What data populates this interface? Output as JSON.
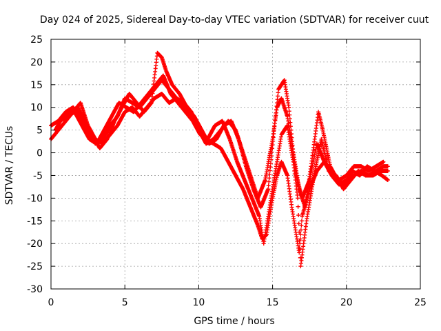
{
  "chart_data": {
    "type": "scatter",
    "title": "Day 024 of 2025, Sidereal Day-to-day VTEC variation (SDTVAR) for receiver cuut",
    "xlabel": "GPS time / hours",
    "ylabel": "SDTVAR / TECUs",
    "xlim": [
      0,
      25
    ],
    "ylim": [
      -30,
      25
    ],
    "xticks": [
      0,
      5,
      10,
      15,
      20,
      25
    ],
    "yticks": [
      -30,
      -25,
      -20,
      -15,
      -10,
      -5,
      0,
      5,
      10,
      15,
      20,
      25
    ],
    "grid": true,
    "marker": "+",
    "series": [
      {
        "name": "SDTVAR",
        "color": "#ff0000",
        "tracks": [
          [
            [
              0,
              3
            ],
            [
              0.5,
              5
            ],
            [
              1,
              7
            ],
            [
              1.5,
              9
            ],
            [
              2,
              11
            ],
            [
              2.5,
              6
            ],
            [
              3,
              3
            ],
            [
              3.5,
              2
            ],
            [
              4,
              4
            ],
            [
              4.5,
              6
            ],
            [
              5,
              9
            ],
            [
              5.5,
              10
            ],
            [
              6,
              8
            ],
            [
              6.5,
              10
            ],
            [
              7,
              12
            ],
            [
              7.5,
              13
            ],
            [
              8,
              11
            ],
            [
              8.5,
              12
            ],
            [
              9,
              10
            ],
            [
              9.5,
              8
            ],
            [
              10,
              6
            ],
            [
              10.5,
              3
            ],
            [
              11,
              2
            ],
            [
              11.5,
              1
            ],
            [
              12,
              -2
            ],
            [
              12.5,
              -5
            ],
            [
              13,
              -8
            ],
            [
              13.5,
              -12
            ],
            [
              14,
              -16
            ],
            [
              14.3,
              -19
            ],
            [
              14.6,
              -18
            ],
            [
              15,
              -10
            ],
            [
              15.3,
              -5
            ],
            [
              15.6,
              -2
            ],
            [
              16,
              -5
            ],
            [
              16.3,
              -12
            ],
            [
              16.6,
              -18
            ],
            [
              16.8,
              -22
            ],
            [
              17,
              -14
            ],
            [
              17.5,
              -8
            ],
            [
              18,
              -4
            ],
            [
              18.5,
              -2
            ],
            [
              19,
              -5
            ],
            [
              19.5,
              -7
            ],
            [
              20,
              -6
            ],
            [
              20.5,
              -5
            ],
            [
              21,
              -4
            ],
            [
              21.5,
              -5
            ],
            [
              22,
              -4
            ],
            [
              22.5,
              -3
            ],
            [
              22.8,
              -3
            ]
          ],
          [
            [
              0,
              6
            ],
            [
              0.5,
              7
            ],
            [
              1,
              9
            ],
            [
              1.5,
              10
            ],
            [
              2,
              8
            ],
            [
              2.5,
              5
            ],
            [
              3,
              2
            ],
            [
              3.5,
              3
            ],
            [
              4,
              6
            ],
            [
              4.5,
              8
            ],
            [
              5,
              12
            ],
            [
              5.5,
              11
            ],
            [
              6,
              10
            ],
            [
              6.5,
              12
            ],
            [
              7,
              14
            ],
            [
              7.5,
              16
            ],
            [
              8,
              14
            ],
            [
              8.5,
              12
            ],
            [
              9,
              11
            ],
            [
              9.5,
              9
            ],
            [
              10,
              5
            ],
            [
              10.5,
              2
            ],
            [
              11,
              3
            ],
            [
              11.5,
              5
            ],
            [
              12,
              7
            ],
            [
              12.5,
              5
            ],
            [
              13,
              0
            ],
            [
              13.5,
              -5
            ],
            [
              14,
              -10
            ],
            [
              14.5,
              -6
            ],
            [
              15,
              3
            ],
            [
              15.3,
              10
            ],
            [
              15.6,
              12
            ],
            [
              16,
              8
            ],
            [
              16.3,
              2
            ],
            [
              16.6,
              -5
            ],
            [
              17,
              -10
            ],
            [
              17.5,
              -6
            ],
            [
              18,
              2
            ],
            [
              18.5,
              -2
            ],
            [
              19,
              -4
            ],
            [
              19.5,
              -6
            ],
            [
              20,
              -5
            ],
            [
              20.5,
              -3
            ],
            [
              21,
              -3
            ],
            [
              21.5,
              -4
            ],
            [
              22,
              -3
            ],
            [
              22.5,
              -2
            ]
          ],
          [
            [
              0.3,
              5
            ],
            [
              0.8,
              8
            ],
            [
              1.3,
              9
            ],
            [
              1.8,
              10
            ],
            [
              2.3,
              7
            ],
            [
              2.8,
              4
            ],
            [
              3.3,
              1
            ],
            [
              3.8,
              3
            ],
            [
              4.3,
              7
            ],
            [
              4.8,
              10
            ],
            [
              5.3,
              13
            ],
            [
              5.8,
              11
            ],
            [
              6.3,
              9
            ],
            [
              6.8,
              11
            ],
            [
              7.2,
              22
            ],
            [
              7.5,
              21
            ],
            [
              7.8,
              18
            ],
            [
              8.2,
              15
            ],
            [
              8.7,
              13
            ],
            [
              9.2,
              10
            ],
            [
              9.7,
              8
            ],
            [
              10.2,
              5
            ],
            [
              10.7,
              2
            ],
            [
              11.2,
              3
            ],
            [
              11.7,
              6
            ],
            [
              12.2,
              7
            ],
            [
              12.7,
              3
            ],
            [
              13.2,
              -3
            ],
            [
              13.7,
              -8
            ],
            [
              14.2,
              -12
            ],
            [
              14.7,
              -8
            ],
            [
              15.1,
              5
            ],
            [
              15.4,
              14
            ],
            [
              15.8,
              16
            ],
            [
              16.1,
              10
            ],
            [
              16.4,
              0
            ],
            [
              16.8,
              -8
            ],
            [
              17.2,
              -12
            ],
            [
              17.6,
              -3
            ],
            [
              18.1,
              9
            ],
            [
              18.4,
              5
            ],
            [
              18.9,
              -3
            ],
            [
              19.4,
              -6
            ],
            [
              19.9,
              -7
            ],
            [
              20.4,
              -4
            ],
            [
              20.9,
              -5
            ],
            [
              21.4,
              -3
            ],
            [
              21.9,
              -4
            ],
            [
              22.4,
              -5
            ],
            [
              22.8,
              -6
            ]
          ],
          [
            [
              0.6,
              7
            ],
            [
              1.1,
              8
            ],
            [
              1.6,
              9
            ],
            [
              2.1,
              6
            ],
            [
              2.6,
              3
            ],
            [
              3.1,
              2
            ],
            [
              3.6,
              5
            ],
            [
              4.1,
              8
            ],
            [
              4.6,
              11
            ],
            [
              5.1,
              10
            ],
            [
              5.6,
              9
            ],
            [
              6.1,
              11
            ],
            [
              6.6,
              13
            ],
            [
              7.1,
              15
            ],
            [
              7.6,
              17
            ],
            [
              8.1,
              13
            ],
            [
              8.6,
              11
            ],
            [
              9.1,
              9
            ],
            [
              9.6,
              7
            ],
            [
              10.1,
              4
            ],
            [
              10.6,
              3
            ],
            [
              11.1,
              6
            ],
            [
              11.6,
              7
            ],
            [
              12.1,
              3
            ],
            [
              12.6,
              -2
            ],
            [
              13.1,
              -6
            ],
            [
              13.6,
              -10
            ],
            [
              14.1,
              -14
            ],
            [
              14.4,
              -20
            ],
            [
              14.8,
              -12
            ],
            [
              15.2,
              -4
            ],
            [
              15.6,
              4
            ],
            [
              16.0,
              6
            ],
            [
              16.4,
              -2
            ],
            [
              16.7,
              -10
            ],
            [
              16.9,
              -25
            ],
            [
              17.3,
              -15
            ],
            [
              17.8,
              -5
            ],
            [
              18.3,
              3
            ],
            [
              18.8,
              -4
            ],
            [
              19.3,
              -5
            ],
            [
              19.8,
              -8
            ],
            [
              20.3,
              -6
            ],
            [
              20.8,
              -4
            ],
            [
              21.3,
              -5
            ],
            [
              21.8,
              -5
            ],
            [
              22.3,
              -4
            ],
            [
              22.8,
              -4
            ]
          ]
        ]
      }
    ]
  }
}
